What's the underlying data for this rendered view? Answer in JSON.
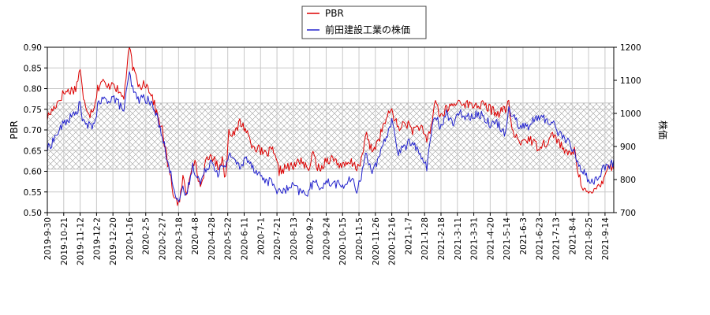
{
  "chart_data": {
    "type": "line",
    "legend": {
      "placement": "top-center"
    },
    "grid": true,
    "band": {
      "axis": "y_left",
      "range": [
        0.605,
        0.765
      ],
      "pattern": "crosshatch"
    },
    "x": {
      "tick_labels": [
        "2019-9-30",
        "2019-10-21",
        "2019-11-12",
        "2019-12-2",
        "2019-12-20",
        "2020-1-16",
        "2020-2-5",
        "2020-2-27",
        "2020-3-18",
        "2020-4-8",
        "2020-4-28",
        "2020-5-22",
        "2020-6-11",
        "2020-7-1",
        "2020-7-21",
        "2020-8-13",
        "2020-9-2",
        "2020-9-24",
        "2020-10-15",
        "2020-11-5",
        "2020-11-26",
        "2020-12-16",
        "2021-1-7",
        "2021-1-28",
        "2021-2-18",
        "2021-3-11",
        "2021-3-31",
        "2021-4-20",
        "2021-5-14",
        "2021-6-3",
        "2021-6-23",
        "2021-7-13",
        "2021-8-4",
        "2021-8-25",
        "2021-9-14"
      ],
      "tick_index": [
        0,
        15,
        30,
        45,
        60,
        75,
        90,
        105,
        120,
        135,
        150,
        165,
        180,
        195,
        210,
        225,
        240,
        255,
        270,
        285,
        300,
        315,
        330,
        345,
        360,
        375,
        390,
        405,
        420,
        435,
        450,
        465,
        480,
        495,
        510
      ],
      "n_points": 519
    },
    "y_left": {
      "label": "PBR",
      "ylim": [
        0.5,
        0.9
      ],
      "ticks": [
        "0.50",
        "0.55",
        "0.60",
        "0.65",
        "0.70",
        "0.75",
        "0.80",
        "0.85",
        "0.90"
      ]
    },
    "y_right": {
      "label": "株価",
      "ylim": [
        700,
        1200
      ],
      "ticks": [
        "700",
        "800",
        "900",
        "1000",
        "1100",
        "1200"
      ]
    },
    "series": [
      {
        "name": "PBR",
        "axis": "left",
        "color": "#dd0000",
        "knots": [
          [
            0,
            0.73
          ],
          [
            15,
            0.79
          ],
          [
            26,
            0.8
          ],
          [
            30,
            0.85
          ],
          [
            33,
            0.77
          ],
          [
            39,
            0.74
          ],
          [
            43,
            0.76
          ],
          [
            46,
            0.8
          ],
          [
            50,
            0.82
          ],
          [
            55,
            0.8
          ],
          [
            60,
            0.82
          ],
          [
            65,
            0.79
          ],
          [
            70,
            0.78
          ],
          [
            75,
            0.9
          ],
          [
            79,
            0.84
          ],
          [
            85,
            0.8
          ],
          [
            88,
            0.82
          ],
          [
            95,
            0.79
          ],
          [
            100,
            0.74
          ],
          [
            105,
            0.7
          ],
          [
            110,
            0.62
          ],
          [
            115,
            0.55
          ],
          [
            118,
            0.53
          ],
          [
            121,
            0.52
          ],
          [
            124,
            0.59
          ],
          [
            127,
            0.54
          ],
          [
            133,
            0.63
          ],
          [
            136,
            0.61
          ],
          [
            140,
            0.56
          ],
          [
            145,
            0.62
          ],
          [
            150,
            0.64
          ],
          [
            156,
            0.61
          ],
          [
            160,
            0.63
          ],
          [
            163,
            0.58
          ],
          [
            166,
            0.7
          ],
          [
            172,
            0.69
          ],
          [
            176,
            0.72
          ],
          [
            182,
            0.7
          ],
          [
            186,
            0.67
          ],
          [
            190,
            0.66
          ],
          [
            198,
            0.64
          ],
          [
            206,
            0.65
          ],
          [
            212,
            0.6
          ],
          [
            219,
            0.61
          ],
          [
            225,
            0.61
          ],
          [
            232,
            0.63
          ],
          [
            238,
            0.6
          ],
          [
            243,
            0.64
          ],
          [
            249,
            0.6
          ],
          [
            255,
            0.63
          ],
          [
            262,
            0.63
          ],
          [
            270,
            0.61
          ],
          [
            278,
            0.62
          ],
          [
            283,
            0.61
          ],
          [
            288,
            0.63
          ],
          [
            291,
            0.69
          ],
          [
            297,
            0.65
          ],
          [
            302,
            0.67
          ],
          [
            309,
            0.72
          ],
          [
            315,
            0.75
          ],
          [
            321,
            0.7
          ],
          [
            327,
            0.72
          ],
          [
            334,
            0.7
          ],
          [
            341,
            0.71
          ],
          [
            347,
            0.67
          ],
          [
            352,
            0.72
          ],
          [
            355,
            0.78
          ],
          [
            359,
            0.73
          ],
          [
            365,
            0.75
          ],
          [
            371,
            0.76
          ],
          [
            378,
            0.77
          ],
          [
            385,
            0.76
          ],
          [
            392,
            0.76
          ],
          [
            399,
            0.76
          ],
          [
            405,
            0.75
          ],
          [
            412,
            0.74
          ],
          [
            418,
            0.75
          ],
          [
            422,
            0.76
          ],
          [
            426,
            0.69
          ],
          [
            432,
            0.67
          ],
          [
            440,
            0.68
          ],
          [
            448,
            0.66
          ],
          [
            456,
            0.67
          ],
          [
            463,
            0.69
          ],
          [
            468,
            0.67
          ],
          [
            475,
            0.64
          ],
          [
            482,
            0.65
          ],
          [
            487,
            0.58
          ],
          [
            493,
            0.55
          ],
          [
            497,
            0.54
          ],
          [
            502,
            0.56
          ],
          [
            508,
            0.58
          ],
          [
            512,
            0.61
          ],
          [
            518,
            0.61
          ]
        ]
      },
      {
        "name": "前田建設工業の株価",
        "axis": "right",
        "color": "#2222cc",
        "knots": [
          [
            0,
            890
          ],
          [
            15,
            970
          ],
          [
            26,
            1000
          ],
          [
            30,
            1030
          ],
          [
            33,
            970
          ],
          [
            39,
            960
          ],
          [
            43,
            970
          ],
          [
            46,
            1020
          ],
          [
            50,
            1040
          ],
          [
            55,
            1040
          ],
          [
            60,
            1050
          ],
          [
            65,
            1030
          ],
          [
            70,
            1010
          ],
          [
            75,
            1120
          ],
          [
            79,
            1060
          ],
          [
            85,
            1040
          ],
          [
            88,
            1050
          ],
          [
            95,
            1030
          ],
          [
            100,
            990
          ],
          [
            105,
            940
          ],
          [
            110,
            850
          ],
          [
            115,
            790
          ],
          [
            118,
            750
          ],
          [
            121,
            730
          ],
          [
            124,
            770
          ],
          [
            127,
            750
          ],
          [
            133,
            840
          ],
          [
            136,
            820
          ],
          [
            140,
            790
          ],
          [
            145,
            830
          ],
          [
            150,
            860
          ],
          [
            156,
            820
          ],
          [
            160,
            840
          ],
          [
            163,
            830
          ],
          [
            166,
            880
          ],
          [
            172,
            860
          ],
          [
            176,
            830
          ],
          [
            182,
            870
          ],
          [
            186,
            850
          ],
          [
            190,
            830
          ],
          [
            198,
            800
          ],
          [
            206,
            790
          ],
          [
            212,
            760
          ],
          [
            219,
            770
          ],
          [
            225,
            780
          ],
          [
            232,
            760
          ],
          [
            238,
            760
          ],
          [
            243,
            790
          ],
          [
            249,
            780
          ],
          [
            255,
            790
          ],
          [
            262,
            790
          ],
          [
            270,
            780
          ],
          [
            278,
            800
          ],
          [
            283,
            770
          ],
          [
            288,
            820
          ],
          [
            291,
            880
          ],
          [
            297,
            830
          ],
          [
            302,
            850
          ],
          [
            309,
            920
          ],
          [
            315,
            980
          ],
          [
            321,
            880
          ],
          [
            327,
            900
          ],
          [
            334,
            920
          ],
          [
            341,
            870
          ],
          [
            347,
            840
          ],
          [
            352,
            960
          ],
          [
            355,
            990
          ],
          [
            359,
            960
          ],
          [
            365,
            1000
          ],
          [
            371,
            970
          ],
          [
            378,
            1000
          ],
          [
            385,
            990
          ],
          [
            392,
            1000
          ],
          [
            399,
            990
          ],
          [
            405,
            970
          ],
          [
            412,
            970
          ],
          [
            418,
            940
          ],
          [
            422,
            1010
          ],
          [
            426,
            1000
          ],
          [
            432,
            960
          ],
          [
            440,
            960
          ],
          [
            448,
            990
          ],
          [
            456,
            980
          ],
          [
            463,
            970
          ],
          [
            468,
            940
          ],
          [
            475,
            920
          ],
          [
            482,
            880
          ],
          [
            487,
            840
          ],
          [
            493,
            810
          ],
          [
            497,
            790
          ],
          [
            502,
            800
          ],
          [
            508,
            830
          ],
          [
            512,
            840
          ],
          [
            518,
            850
          ]
        ]
      }
    ]
  }
}
